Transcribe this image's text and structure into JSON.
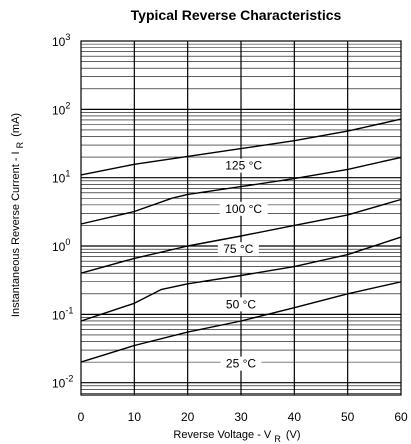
{
  "chart_data": {
    "type": "line",
    "title": "Typical Reverse Characteristics",
    "xlabel_main": "Reverse Voltage - V",
    "xlabel_sub": "R",
    "xlabel_unit": "(V)",
    "ylabel_main": "Instantaneous Reverse Current - I",
    "ylabel_sub": "R",
    "ylabel_unit": "(mA)",
    "xlim": [
      0,
      60
    ],
    "ylim": [
      0.005,
      1000
    ],
    "y_scale": "log",
    "x_ticks": [
      "0",
      "10",
      "20",
      "30",
      "40",
      "50",
      "60"
    ],
    "y_ticks": [
      {
        "base": "10",
        "exp": "-2"
      },
      {
        "base": "10",
        "exp": "-1"
      },
      {
        "base": "10",
        "exp": "0"
      },
      {
        "base": "10",
        "exp": "1"
      },
      {
        "base": "10",
        "exp": "2"
      },
      {
        "base": "10",
        "exp": "3"
      }
    ],
    "grid": true,
    "series": [
      {
        "name": "125 °C",
        "x": [
          0,
          10,
          20,
          30,
          40,
          50,
          60
        ],
        "y": [
          11,
          15.7,
          20.5,
          26.6,
          34.8,
          48,
          72
        ]
      },
      {
        "name": "100 °C",
        "x": [
          0,
          10,
          17,
          20,
          30,
          40,
          50,
          60
        ],
        "y": [
          2.1,
          3.2,
          5,
          5.7,
          7.4,
          9.7,
          13.2,
          19.8
        ]
      },
      {
        "name": "75 °C",
        "x": [
          0,
          10,
          20,
          30,
          40,
          50,
          60
        ],
        "y": [
          0.4,
          0.66,
          1.0,
          1.4,
          2.0,
          2.85,
          4.8
        ]
      },
      {
        "name": "50 °C",
        "x": [
          0,
          10,
          15,
          20,
          30,
          40,
          50,
          60
        ],
        "y": [
          0.08,
          0.145,
          0.23,
          0.28,
          0.37,
          0.5,
          0.75,
          1.35
        ]
      },
      {
        "name": "25 °C",
        "x": [
          0,
          10,
          20,
          30,
          40,
          50,
          60
        ],
        "y": [
          0.02,
          0.035,
          0.055,
          0.08,
          0.125,
          0.2,
          0.3
        ]
      }
    ],
    "labels": [
      {
        "text": "125 °C",
        "x": 30.5,
        "y": 15
      },
      {
        "text": "100 °C",
        "x": 30.5,
        "y": 3.5
      },
      {
        "text": "75 °C",
        "x": 29.5,
        "y": 0.9
      },
      {
        "text": "50 °C",
        "x": 30,
        "y": 0.14
      },
      {
        "text": "25 °C",
        "x": 30,
        "y": 0.019
      }
    ]
  }
}
